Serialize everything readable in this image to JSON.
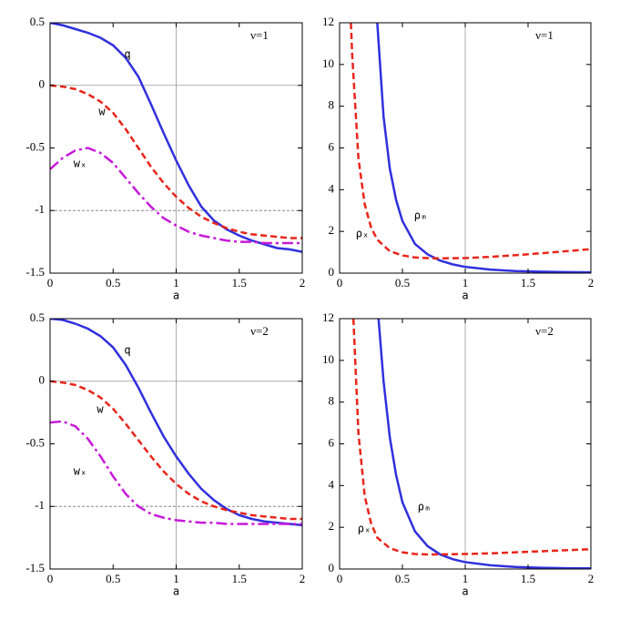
{
  "chart_data": [
    {
      "type": "line",
      "annotation": "ν=1",
      "x_label": "a",
      "xlim": [
        0,
        2
      ],
      "ylim": [
        -1.5,
        0.5
      ],
      "xticks": [
        0,
        0.5,
        1,
        1.5,
        2
      ],
      "yticks": [
        -1.5,
        -1,
        -0.5,
        0,
        0.5
      ],
      "axes_origin": [
        1,
        0
      ],
      "hline": -1,
      "series": [
        {
          "name": "q",
          "color": "#3030dd",
          "style": "solid",
          "x": [
            0,
            0.1,
            0.2,
            0.3,
            0.4,
            0.5,
            0.6,
            0.7,
            0.8,
            0.9,
            1,
            1.1,
            1.2,
            1.3,
            1.4,
            1.5,
            1.6,
            1.7,
            1.8,
            1.9,
            2
          ],
          "values": [
            0.5,
            0.48,
            0.45,
            0.42,
            0.38,
            0.32,
            0.22,
            0.07,
            -0.15,
            -0.38,
            -0.6,
            -0.8,
            -0.97,
            -1.08,
            -1.15,
            -1.2,
            -1.24,
            -1.27,
            -1.3,
            -1.31,
            -1.33
          ]
        },
        {
          "name": "w",
          "color": "#e8251a",
          "style": "dashed",
          "x": [
            0,
            0.1,
            0.2,
            0.3,
            0.4,
            0.5,
            0.6,
            0.7,
            0.8,
            0.9,
            1,
            1.1,
            1.2,
            1.3,
            1.4,
            1.5,
            1.6,
            1.7,
            1.8,
            1.9,
            2
          ],
          "values": [
            0,
            -0.01,
            -0.03,
            -0.07,
            -0.13,
            -0.22,
            -0.35,
            -0.5,
            -0.65,
            -0.78,
            -0.89,
            -0.98,
            -1.05,
            -1.1,
            -1.14,
            -1.17,
            -1.19,
            -1.2,
            -1.21,
            -1.22,
            -1.22
          ]
        },
        {
          "name": "wₓ",
          "color": "#c71ad9",
          "style": "dashdot",
          "x": [
            0,
            0.1,
            0.2,
            0.3,
            0.4,
            0.5,
            0.6,
            0.7,
            0.8,
            0.9,
            1,
            1.1,
            1.2,
            1.3,
            1.4,
            1.5,
            1.6,
            1.7,
            1.8,
            1.9,
            2
          ],
          "values": [
            -0.67,
            -0.58,
            -0.52,
            -0.5,
            -0.54,
            -0.62,
            -0.74,
            -0.86,
            -0.97,
            -1.06,
            -1.12,
            -1.17,
            -1.2,
            -1.22,
            -1.24,
            -1.25,
            -1.25,
            -1.26,
            -1.26,
            -1.26,
            -1.26
          ]
        }
      ]
    },
    {
      "type": "line",
      "annotation": "ν=1",
      "x_label": "a",
      "xlim": [
        0,
        2
      ],
      "ylim": [
        0,
        12
      ],
      "xticks": [
        0,
        0.5,
        1,
        1.5,
        2
      ],
      "yticks": [
        0,
        2,
        4,
        6,
        8,
        10,
        12
      ],
      "axes_origin": [
        1,
        0
      ],
      "series": [
        {
          "name": "ρₘ",
          "color": "#3030dd",
          "style": "solid",
          "x": [
            0.3,
            0.35,
            0.4,
            0.45,
            0.5,
            0.6,
            0.7,
            0.8,
            0.9,
            1,
            1.2,
            1.4,
            1.6,
            1.8,
            2
          ],
          "values": [
            12,
            7.5,
            5,
            3.5,
            2.5,
            1.4,
            0.9,
            0.6,
            0.42,
            0.3,
            0.17,
            0.1,
            0.07,
            0.05,
            0.04
          ]
        },
        {
          "name": "ρₓ",
          "color": "#e8251a",
          "style": "dashed",
          "x": [
            0.09,
            0.1,
            0.15,
            0.2,
            0.25,
            0.3,
            0.4,
            0.5,
            0.6,
            0.7,
            0.8,
            1,
            1.2,
            1.4,
            1.6,
            1.8,
            2
          ],
          "values": [
            12,
            10.5,
            5.5,
            3.3,
            2.2,
            1.6,
            1.05,
            0.85,
            0.75,
            0.72,
            0.71,
            0.72,
            0.78,
            0.86,
            0.95,
            1.05,
            1.15
          ]
        }
      ]
    },
    {
      "type": "line",
      "annotation": "ν=2",
      "x_label": "a",
      "xlim": [
        0,
        2
      ],
      "ylim": [
        -1.5,
        0.5
      ],
      "xticks": [
        0,
        0.5,
        1,
        1.5,
        2
      ],
      "yticks": [
        -1.5,
        -1,
        -0.5,
        0,
        0.5
      ],
      "axes_origin": [
        1,
        0
      ],
      "hline": -1,
      "series": [
        {
          "name": "q",
          "color": "#3030dd",
          "style": "solid",
          "x": [
            0,
            0.1,
            0.2,
            0.3,
            0.4,
            0.5,
            0.6,
            0.7,
            0.8,
            0.9,
            1,
            1.1,
            1.2,
            1.3,
            1.4,
            1.5,
            1.6,
            1.7,
            1.8,
            1.9,
            2
          ],
          "values": [
            0.5,
            0.49,
            0.46,
            0.42,
            0.36,
            0.27,
            0.13,
            -0.05,
            -0.25,
            -0.44,
            -0.6,
            -0.74,
            -0.86,
            -0.95,
            -1.02,
            -1.07,
            -1.1,
            -1.12,
            -1.13,
            -1.14,
            -1.15
          ]
        },
        {
          "name": "w",
          "color": "#e8251a",
          "style": "dashed",
          "x": [
            0,
            0.1,
            0.2,
            0.3,
            0.4,
            0.5,
            0.6,
            0.7,
            0.8,
            0.9,
            1,
            1.1,
            1.2,
            1.3,
            1.4,
            1.5,
            1.6,
            1.7,
            1.8,
            1.9,
            2
          ],
          "values": [
            0,
            -0.01,
            -0.03,
            -0.07,
            -0.13,
            -0.22,
            -0.34,
            -0.47,
            -0.6,
            -0.72,
            -0.82,
            -0.9,
            -0.96,
            -1,
            -1.03,
            -1.05,
            -1.07,
            -1.08,
            -1.09,
            -1.1,
            -1.1
          ]
        },
        {
          "name": "wₓ",
          "color": "#c71ad9",
          "style": "dashdot",
          "x": [
            0,
            0.1,
            0.2,
            0.3,
            0.4,
            0.5,
            0.6,
            0.7,
            0.8,
            0.9,
            1,
            1.1,
            1.2,
            1.3,
            1.4,
            1.5,
            1.6,
            1.7,
            1.8,
            1.9,
            2
          ],
          "values": [
            -0.33,
            -0.32,
            -0.36,
            -0.46,
            -0.6,
            -0.76,
            -0.9,
            -1,
            -1.06,
            -1.09,
            -1.11,
            -1.12,
            -1.13,
            -1.13,
            -1.14,
            -1.14,
            -1.14,
            -1.14,
            -1.14,
            -1.14,
            -1.14
          ]
        }
      ]
    },
    {
      "type": "line",
      "annotation": "ν=2",
      "x_label": "a",
      "xlim": [
        0,
        2
      ],
      "ylim": [
        0,
        12
      ],
      "xticks": [
        0,
        0.5,
        1,
        1.5,
        2
      ],
      "yticks": [
        0,
        2,
        4,
        6,
        8,
        10,
        12
      ],
      "axes_origin": [
        1,
        0
      ],
      "series": [
        {
          "name": "ρₘ",
          "color": "#3030dd",
          "style": "solid",
          "x": [
            0.31,
            0.35,
            0.4,
            0.45,
            0.5,
            0.6,
            0.7,
            0.8,
            0.9,
            1,
            1.2,
            1.4,
            1.6,
            1.8,
            2
          ],
          "values": [
            12,
            9,
            6.3,
            4.5,
            3.2,
            1.8,
            1.1,
            0.7,
            0.47,
            0.33,
            0.18,
            0.1,
            0.06,
            0.04,
            0.03
          ]
        },
        {
          "name": "ρₓ",
          "color": "#e8251a",
          "style": "dashed",
          "x": [
            0.11,
            0.15,
            0.2,
            0.25,
            0.3,
            0.4,
            0.5,
            0.6,
            0.7,
            0.8,
            1,
            1.2,
            1.4,
            1.6,
            1.8,
            2
          ],
          "values": [
            12,
            6.5,
            3.5,
            2.2,
            1.5,
            1,
            0.8,
            0.72,
            0.7,
            0.7,
            0.72,
            0.75,
            0.8,
            0.85,
            0.9,
            0.95
          ]
        }
      ]
    }
  ]
}
